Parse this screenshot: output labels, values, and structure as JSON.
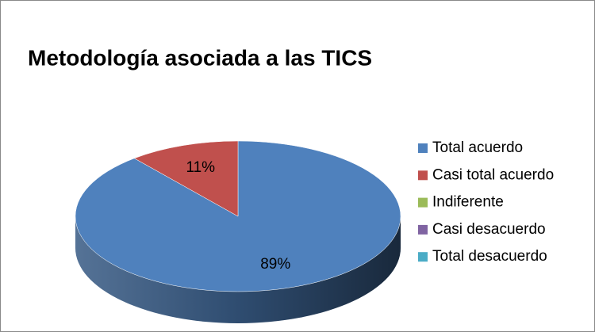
{
  "chart_data": {
    "type": "pie",
    "title": "Metodología asociada a las TICS",
    "categories": [
      "Total acuerdo",
      "Casi total acuerdo",
      "Indiferente",
      "Casi desacuerdo",
      "Total desacuerdo"
    ],
    "values": [
      89,
      11,
      0,
      0,
      0
    ],
    "value_labels": [
      "89%",
      "11%",
      null,
      null,
      null
    ],
    "colors": [
      "#4f81bd",
      "#c0504d",
      "#9bbb59",
      "#8064a2",
      "#4bacc6"
    ],
    "legend": "right"
  }
}
